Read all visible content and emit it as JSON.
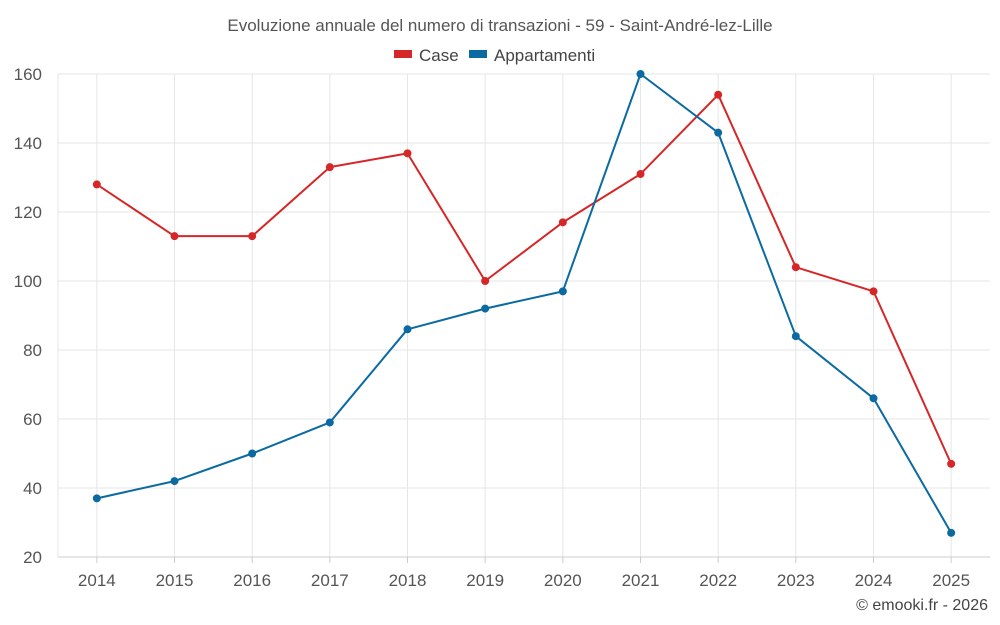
{
  "chart_data": {
    "type": "line",
    "title": "Evoluzione annuale del numero di transazioni - 59 - Saint-André-lez-Lille",
    "categories": [
      "2014",
      "2015",
      "2016",
      "2017",
      "2018",
      "2019",
      "2020",
      "2021",
      "2022",
      "2023",
      "2024",
      "2025"
    ],
    "series": [
      {
        "name": "Case",
        "color": "#d62728",
        "values": [
          128,
          113,
          113,
          133,
          137,
          100,
          117,
          131,
          154,
          104,
          97,
          47
        ]
      },
      {
        "name": "Appartamenti",
        "color": "#0a6aa1",
        "values": [
          37,
          42,
          50,
          59,
          86,
          92,
          97,
          160,
          143,
          84,
          66,
          27
        ]
      }
    ],
    "ylim": [
      20,
      160
    ],
    "yticks": [
      20,
      40,
      60,
      80,
      100,
      120,
      140,
      160
    ],
    "grid": true,
    "legend": "top-center",
    "xlabel": "",
    "ylabel": ""
  },
  "credit": "© emooki.fr - 2026"
}
